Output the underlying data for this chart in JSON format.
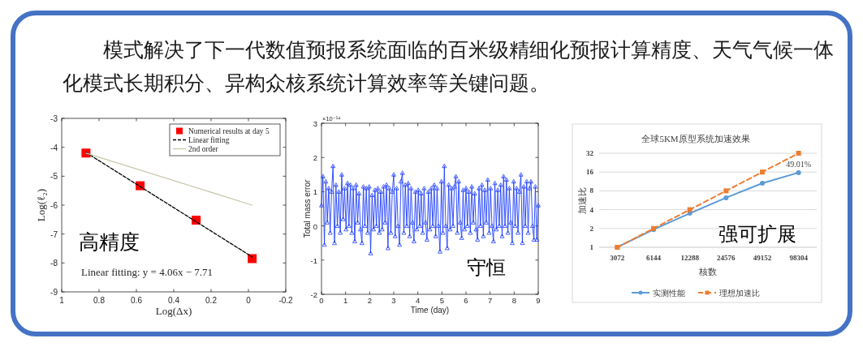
{
  "chart_data": [
    {
      "type": "other",
      "title": "模式解决了下一代数值预报系统面临的百米级精细化预报计算精度、天气气候一体化模式长期积分、异构众核系统计算效率等关键问题。"
    },
    {
      "type": "scatter",
      "xlabel": "Log(Δx)",
      "ylabel": "Log(ℓ₂)",
      "xlim": [
        1,
        -0.2
      ],
      "xticks": [
        1,
        0.8,
        0.6,
        0.4,
        0.2,
        0,
        -0.2
      ],
      "ylim": [
        -9,
        -3
      ],
      "yticks": [
        -9,
        -8,
        -7,
        -6,
        -5,
        -4,
        -3
      ],
      "legend": "top right",
      "series": [
        {
          "name": "Numerical results at day 5",
          "type": "scatter",
          "marker": "square",
          "color": "#ff0000",
          "x": [
            0.87,
            0.58,
            0.28,
            -0.02
          ],
          "values": [
            -4.2,
            -5.33,
            -6.52,
            -7.85
          ]
        },
        {
          "name": "Linear fitting",
          "type": "line",
          "line_style": "dashed",
          "color": "#000000",
          "x": [
            0.87,
            -0.02
          ],
          "values": [
            -4.18,
            -7.79
          ]
        },
        {
          "name": "2nd order",
          "type": "line",
          "color": "#c9c7a9",
          "x": [
            0.87,
            -0.02
          ],
          "values": [
            -4.2,
            -6.0
          ]
        }
      ],
      "annotations": [
        "高精度",
        "Linear fitting: y = 4.06x − 7.71"
      ]
    },
    {
      "type": "line",
      "marker": "triangle",
      "color": "#1f3fff",
      "xlabel": "Time (day)",
      "ylabel": "Total mass error",
      "xlim": [
        0,
        9
      ],
      "xticks": [
        0,
        1,
        2,
        3,
        4,
        5,
        6,
        7,
        8,
        9
      ],
      "ylim": [
        -2,
        3
      ],
      "yticks": [
        -2,
        -1,
        0,
        1,
        2,
        3
      ],
      "x": [
        0,
        0.06,
        0.12,
        0.18,
        0.24,
        0.3,
        0.36,
        0.42,
        0.48,
        0.54,
        0.6,
        0.66,
        0.72,
        0.78,
        0.84,
        0.9,
        0.96,
        1.02,
        1.08,
        1.14,
        1.2,
        1.26,
        1.32,
        1.38,
        1.44,
        1.5,
        1.56,
        1.62,
        1.68,
        1.74,
        1.8,
        1.86,
        1.92,
        1.98,
        2.04,
        2.1,
        2.16,
        2.22,
        2.28,
        2.34,
        2.4,
        2.46,
        2.52,
        2.58,
        2.64,
        2.7,
        2.76,
        2.82,
        2.88,
        2.94,
        3,
        3.06,
        3.12,
        3.18,
        3.24,
        3.3,
        3.36,
        3.42,
        3.48,
        3.54,
        3.6,
        3.66,
        3.72,
        3.78,
        3.84,
        3.9,
        3.96,
        4.02,
        4.08,
        4.14,
        4.2,
        4.26,
        4.32,
        4.38,
        4.44,
        4.5,
        4.56,
        4.62,
        4.68,
        4.74,
        4.8,
        4.86,
        4.92,
        4.98,
        5.04,
        5.1,
        5.16,
        5.22,
        5.28,
        5.34,
        5.4,
        5.46,
        5.52,
        5.58,
        5.64,
        5.7,
        5.76,
        5.82,
        5.88,
        5.94,
        6,
        6.06,
        6.12,
        6.18,
        6.24,
        6.3,
        6.36,
        6.42,
        6.48,
        6.54,
        6.6,
        6.66,
        6.72,
        6.78,
        6.84,
        6.9,
        6.96,
        7.02,
        7.08,
        7.14,
        7.2,
        7.26,
        7.32,
        7.38,
        7.44,
        7.5,
        7.56,
        7.62,
        7.68,
        7.74,
        7.8,
        7.86,
        7.92,
        7.98,
        8.04,
        8.1,
        8.16,
        8.22,
        8.28,
        8.34,
        8.4,
        8.46,
        8.52,
        8.58,
        8.64,
        8.7,
        8.76,
        8.82,
        8.88,
        8.94,
        9
      ],
      "values": [
        0.6,
        1.45,
        -0.55,
        1.3,
        0.1,
        1.1,
        -0.2,
        1.0,
        1.75,
        -0.5,
        1.2,
        0.0,
        1.0,
        -0.2,
        1.5,
        0.2,
        1.1,
        -0.1,
        1.25,
        0.0,
        1.2,
        -0.2,
        1.1,
        -0.45,
        1.2,
        0.1,
        0.95,
        -0.1,
        -0.5,
        1.15,
        0.0,
        1.1,
        -0.2,
        1.15,
        -0.8,
        0.9,
        -0.1,
        1.05,
        0.0,
        1.1,
        -0.2,
        1.0,
        -0.1,
        1.15,
        0.1,
        1.2,
        -0.65,
        1.1,
        -0.2,
        1.0,
        1.5,
        -0.3,
        1.1,
        0.0,
        -0.55,
        1.3,
        1.55,
        -0.2,
        1.2,
        0.0,
        1.25,
        -0.3,
        1.1,
        0.1,
        -0.45,
        1.0,
        -0.1,
        1.05,
        0.0,
        0.95,
        -0.2,
        1.1,
        0.1,
        -0.4,
        1.0,
        -0.1,
        1.1,
        0.0,
        1.2,
        -0.3,
        1.1,
        0.0,
        -0.75,
        1.3,
        -0.2,
        1.75,
        0.0,
        -0.65,
        1.2,
        -0.1,
        1.1,
        0.0,
        1.15,
        1.45,
        -0.2,
        1.3,
        0.1,
        -0.35,
        1.05,
        -0.1,
        1.1,
        0.0,
        1.0,
        -0.2,
        1.15,
        0.1,
        0.95,
        -0.1,
        -0.4,
        1.1,
        0.0,
        1.2,
        -0.3,
        1.05,
        0.1,
        1.35,
        -0.2,
        1.1,
        0.0,
        -0.45,
        1.25,
        -0.1,
        1.05,
        0.0,
        1.2,
        -0.3,
        1.45,
        0.0,
        1.35,
        -0.2,
        1.1,
        0.1,
        -0.5,
        1.3,
        0.0,
        1.1,
        -0.2,
        1.0,
        1.5,
        -0.5,
        1.15,
        0.0,
        1.3,
        -0.2,
        1.1,
        1.3,
        0.0,
        -0.4,
        1.15,
        -0.4,
        0.6
      ],
      "annotations": [
        "×10⁻¹⁴",
        "守恒"
      ]
    },
    {
      "type": "line",
      "title": "全球5KM原型系统加速效果",
      "categories": [
        "3072",
        "6144",
        "12288",
        "24576",
        "49152",
        "98304"
      ],
      "xlabel": "核数",
      "ylabel": "加速比",
      "log": "y",
      "ylim": [
        1,
        32
      ],
      "yticks": [
        1,
        2,
        4,
        8,
        16,
        32
      ],
      "grid": "y",
      "legend": "bottom",
      "series": [
        {
          "name": "实测性能",
          "color": "#5b9bd5",
          "marker": "circle",
          "values": [
            1,
            1.92,
            3.5,
            6.2,
            10.6,
            15.68
          ]
        },
        {
          "name": "理想加速比",
          "color": "#ed7d31",
          "marker": "square",
          "line_style": "dashed",
          "values": [
            1,
            2,
            4,
            8,
            16,
            32
          ]
        }
      ],
      "annotations": [
        {
          "text": "49.01%",
          "x": "98304",
          "y": 15.68
        },
        "强可扩展"
      ]
    }
  ]
}
